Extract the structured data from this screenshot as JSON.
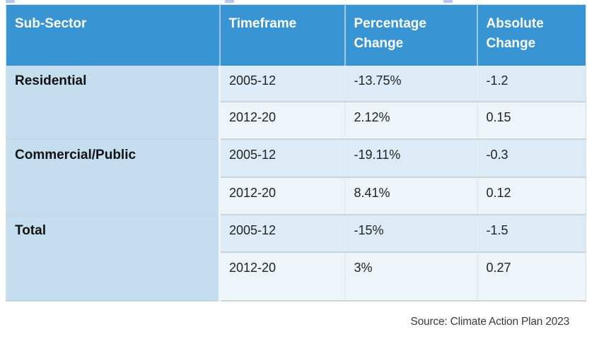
{
  "chart_data": {
    "type": "table",
    "columns": [
      "Sub-Sector",
      "Timeframe",
      "Percentage Change",
      "Absolute Change"
    ],
    "rows": [
      [
        "Residential",
        "2005-12",
        "-13.75%",
        "-1.2"
      ],
      [
        "Residential",
        "2012-20",
        "2.12%",
        "0.15"
      ],
      [
        "Commercial/Public",
        "2005-12",
        "-19.11%",
        "-0.3"
      ],
      [
        "Commercial/Public",
        "2012-20",
        "8.41%",
        "0.12"
      ],
      [
        "Total",
        "2005-12",
        "-15%",
        "-1.5"
      ],
      [
        "Total",
        "2012-20",
        "3%",
        "0.27"
      ]
    ],
    "source": "Source: Climate Action Plan 2023",
    "layout_hints": {
      "header_position": "top",
      "sector_column_rowspan": 2,
      "row_shading": "alternating per timeframe row"
    }
  },
  "colors": {
    "header_bg": "#3894d3",
    "header_text": "#ffffff",
    "sector_bg": "#c4def0",
    "row_odd_bg": "#dcebf6",
    "row_even_bg": "#edf4fa",
    "body_text": "#232323",
    "source_text": "#3b3b3b",
    "artifact": "#b4c7f2"
  }
}
